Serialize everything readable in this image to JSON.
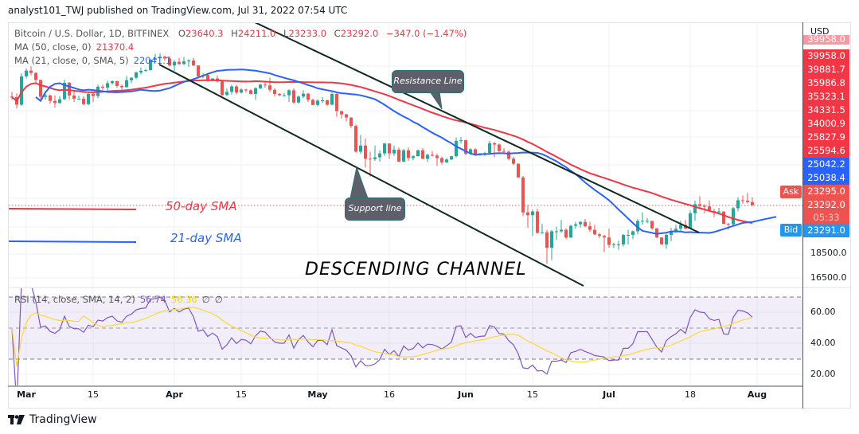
{
  "header": {
    "publisher_line": "analyst101_TWJ published on TradingView.com, Jul 31, 2022 07:54 UTC"
  },
  "legend": {
    "symbol": "Bitcoin / U.S. Dollar, 1D, BITFINEX",
    "o_label": "O",
    "o": "23640.3",
    "h_label": "H",
    "h": "24211.0",
    "l_label": "L",
    "l": "23233.0",
    "c_label": "C",
    "c": "23292.0",
    "change": "−347.0 (−1.47%)",
    "ma50_label": "MA (50, close, 0)",
    "ma50_value": "21370.4",
    "ma21_label": "MA (21, close, 0, SMA, 5)",
    "ma21_value": "22041.1",
    "rsi_label": "RSI (14, close, SMA, 14, 2)",
    "rsi_value": "56.74",
    "rsi_sma_value": "56.36",
    "rsi_extra1": "∅",
    "rsi_extra2": "∅"
  },
  "price_axis": {
    "currency": "USD",
    "stacked_labels": [
      {
        "text": "39958.0",
        "color": "#f23645"
      },
      {
        "text": "39958.0",
        "color": "#f23645"
      },
      {
        "text": "39881.7",
        "color": "#f23645"
      },
      {
        "text": "35986.8",
        "color": "#f23645"
      },
      {
        "text": "35323.1",
        "color": "#f23645"
      },
      {
        "text": "34331.5",
        "color": "#f23645"
      },
      {
        "text": "34000.9",
        "color": "#f23645"
      },
      {
        "text": "25827.9",
        "color": "#f23645"
      },
      {
        "text": "25594.6",
        "color": "#f23645"
      },
      {
        "text": "25042.2",
        "color": "#2962ff"
      },
      {
        "text": "25038.4",
        "color": "#2962ff"
      }
    ],
    "ask_label": "Ask",
    "ask_price": "23295.0",
    "last_price": "23292.0",
    "countdown": "05:33",
    "bid_label": "Bid",
    "bid_price": "23291.0",
    "tick_labels": [
      "18500.0",
      "16500.0"
    ]
  },
  "rsi_axis": {
    "tick_labels": [
      "60.00",
      "40.00",
      "20.00"
    ]
  },
  "time_axis": {
    "labels": [
      "Mar",
      "15",
      "Apr",
      "15",
      "May",
      "16",
      "Jun",
      "15",
      "Jul",
      "18",
      "Aug"
    ]
  },
  "annotations": {
    "resistance": "Resistance Line",
    "support": "Support line",
    "sma50": "50-day SMA",
    "sma21": "21-day SMA",
    "channel": "DESCENDING CHANNEL"
  },
  "footer": {
    "brand": "TradingView"
  },
  "colors": {
    "up": "#26a69a",
    "down": "#ef5350",
    "ma50": "#f23645",
    "ma21": "#2962ff",
    "rsi": "#7e57c2",
    "rsi_sma": "#fdd835",
    "ask": "#ef5350",
    "bid": "#2196f3"
  },
  "chart_data": {
    "type": "candlestick",
    "title": "Bitcoin / U.S. Dollar, 1D, BITFINEX",
    "y_scale": "log",
    "ylabel": "USD",
    "grid": true,
    "overlays": [
      {
        "name": "MA (50, close, 0)",
        "type": "sma",
        "period": 50,
        "offset": 0,
        "color": "#f23645"
      },
      {
        "name": "MA (21, close, 0, SMA, 5)",
        "type": "sma",
        "period": 21,
        "offset": 5,
        "color": "#2962ff"
      }
    ],
    "indicator": {
      "name": "RSI (14, close, SMA, 14, 2)",
      "period": 14,
      "sma": 14,
      "bands": [
        70,
        50,
        30
      ],
      "ylim": [
        10,
        80
      ]
    },
    "candles_columns": [
      "date",
      "open",
      "high",
      "low",
      "close"
    ],
    "candles": [
      [
        "2022-02-26",
        39200,
        40100,
        38600,
        39100
      ],
      [
        "2022-02-27",
        39100,
        39800,
        37000,
        37700
      ],
      [
        "2022-02-28",
        37700,
        43800,
        37500,
        43200
      ],
      [
        "2022-03-01",
        43200,
        44900,
        42800,
        44400
      ],
      [
        "2022-03-02",
        44400,
        45300,
        43400,
        43900
      ],
      [
        "2022-03-03",
        43900,
        44100,
        41900,
        42450
      ],
      [
        "2022-03-04",
        42450,
        42500,
        38700,
        39150
      ],
      [
        "2022-03-05",
        39150,
        39700,
        38600,
        39400
      ],
      [
        "2022-03-06",
        39400,
        39600,
        37900,
        38400
      ],
      [
        "2022-03-07",
        38400,
        39400,
        37200,
        38000
      ],
      [
        "2022-03-08",
        38000,
        39300,
        37900,
        38700
      ],
      [
        "2022-03-09",
        38700,
        42500,
        38600,
        41900
      ],
      [
        "2022-03-10",
        41900,
        42000,
        38600,
        39400
      ],
      [
        "2022-03-11",
        39400,
        40200,
        38200,
        38800
      ],
      [
        "2022-03-12",
        38800,
        39400,
        38700,
        38800
      ],
      [
        "2022-03-13",
        38800,
        39300,
        37600,
        37800
      ],
      [
        "2022-03-14",
        37800,
        39900,
        37600,
        39700
      ],
      [
        "2022-03-15",
        39700,
        39900,
        38200,
        39300
      ],
      [
        "2022-03-16",
        39300,
        41500,
        38900,
        41100
      ],
      [
        "2022-03-17",
        41100,
        41500,
        40500,
        40900
      ],
      [
        "2022-03-18",
        40900,
        42300,
        40200,
        41800
      ],
      [
        "2022-03-19",
        41800,
        42400,
        41500,
        42200
      ],
      [
        "2022-03-20",
        42200,
        42300,
        40900,
        41250
      ],
      [
        "2022-03-21",
        41250,
        41500,
        40500,
        41000
      ],
      [
        "2022-03-22",
        41000,
        43300,
        40900,
        42400
      ],
      [
        "2022-03-23",
        42400,
        43000,
        41800,
        42900
      ],
      [
        "2022-03-24",
        42900,
        44200,
        42600,
        44000
      ],
      [
        "2022-03-25",
        44000,
        45100,
        43600,
        44350
      ],
      [
        "2022-03-26",
        44350,
        44800,
        44100,
        44500
      ],
      [
        "2022-03-27",
        44500,
        46900,
        44400,
        46800
      ],
      [
        "2022-03-28",
        46800,
        48100,
        46700,
        47100
      ],
      [
        "2022-03-29",
        47100,
        48200,
        46900,
        47450
      ],
      [
        "2022-03-30",
        47450,
        47700,
        46500,
        47050
      ],
      [
        "2022-03-31",
        47050,
        47600,
        45300,
        45500
      ],
      [
        "2022-04-01",
        45500,
        46700,
        44300,
        46300
      ],
      [
        "2022-04-02",
        46300,
        47200,
        45700,
        45800
      ],
      [
        "2022-04-03",
        45800,
        47400,
        45600,
        46400
      ],
      [
        "2022-04-04",
        46400,
        46900,
        45200,
        46600
      ],
      [
        "2022-04-05",
        46600,
        47200,
        45400,
        45500
      ],
      [
        "2022-04-06",
        45500,
        45500,
        43100,
        43200
      ],
      [
        "2022-04-07",
        43200,
        43900,
        42800,
        43450
      ],
      [
        "2022-04-08",
        43450,
        43900,
        42100,
        42250
      ],
      [
        "2022-04-09",
        42250,
        42800,
        42150,
        42750
      ],
      [
        "2022-04-10",
        42750,
        43400,
        41900,
        42150
      ],
      [
        "2022-04-11",
        42150,
        42400,
        39300,
        39500
      ],
      [
        "2022-04-12",
        39500,
        40700,
        39300,
        40100
      ],
      [
        "2022-04-13",
        40100,
        41500,
        39600,
        41150
      ],
      [
        "2022-04-14",
        41150,
        41500,
        39600,
        39950
      ],
      [
        "2022-04-15",
        39950,
        40800,
        39800,
        40550
      ],
      [
        "2022-04-16",
        40550,
        40700,
        40000,
        40400
      ],
      [
        "2022-04-17",
        40400,
        40600,
        39600,
        39700
      ],
      [
        "2022-04-18",
        39700,
        41000,
        38600,
        40800
      ],
      [
        "2022-04-19",
        40800,
        41700,
        40600,
        41500
      ],
      [
        "2022-04-20",
        41500,
        42200,
        40900,
        41350
      ],
      [
        "2022-04-21",
        41350,
        42900,
        40100,
        40500
      ],
      [
        "2022-04-22",
        40500,
        40800,
        39200,
        39700
      ],
      [
        "2022-04-23",
        39700,
        39900,
        39300,
        39450
      ],
      [
        "2022-04-24",
        39450,
        39900,
        39200,
        39450
      ],
      [
        "2022-04-25",
        39450,
        40600,
        38200,
        40400
      ],
      [
        "2022-04-26",
        40400,
        40800,
        37900,
        38100
      ],
      [
        "2022-04-27",
        38100,
        39400,
        37900,
        39200
      ],
      [
        "2022-04-28",
        39200,
        40400,
        38900,
        39750
      ],
      [
        "2022-04-29",
        39750,
        39900,
        38200,
        38600
      ],
      [
        "2022-04-30",
        38600,
        38800,
        37600,
        37650
      ],
      [
        "2022-05-01",
        37650,
        38700,
        37400,
        38450
      ],
      [
        "2022-05-02",
        38450,
        39100,
        38000,
        38500
      ],
      [
        "2022-05-03",
        38500,
        38600,
        37500,
        37700
      ],
      [
        "2022-05-04",
        37700,
        40000,
        37600,
        39700
      ],
      [
        "2022-05-05",
        39700,
        39800,
        35600,
        36550
      ],
      [
        "2022-05-06",
        36550,
        36600,
        35300,
        36000
      ],
      [
        "2022-05-07",
        36000,
        36100,
        34800,
        35450
      ],
      [
        "2022-05-08",
        35450,
        35500,
        33700,
        34050
      ],
      [
        "2022-05-09",
        34050,
        34300,
        30000,
        30100
      ],
      [
        "2022-05-10",
        30100,
        32600,
        29800,
        31000
      ],
      [
        "2022-05-11",
        31000,
        32100,
        27900,
        29100
      ],
      [
        "2022-05-12",
        29100,
        30100,
        26700,
        29050
      ],
      [
        "2022-05-13",
        29050,
        31000,
        28800,
        29300
      ],
      [
        "2022-05-14",
        29300,
        30300,
        28700,
        29850
      ],
      [
        "2022-05-15",
        29850,
        31400,
        29500,
        31300
      ],
      [
        "2022-05-16",
        31300,
        31300,
        29100,
        29850
      ],
      [
        "2022-05-17",
        29850,
        31000,
        29500,
        30400
      ],
      [
        "2022-05-18",
        30400,
        30700,
        28700,
        28700
      ],
      [
        "2022-05-19",
        28700,
        30500,
        28700,
        30300
      ],
      [
        "2022-05-20",
        30300,
        30700,
        28800,
        29200
      ],
      [
        "2022-05-21",
        29200,
        29600,
        28900,
        29450
      ],
      [
        "2022-05-22",
        29450,
        30400,
        29400,
        30300
      ],
      [
        "2022-05-23",
        30300,
        30600,
        29000,
        29100
      ],
      [
        "2022-05-24",
        29100,
        29800,
        28700,
        29650
      ],
      [
        "2022-05-25",
        29650,
        30200,
        29400,
        29550
      ],
      [
        "2022-05-26",
        29550,
        29800,
        28100,
        29200
      ],
      [
        "2022-05-27",
        29200,
        29400,
        28300,
        28600
      ],
      [
        "2022-05-28",
        28600,
        29200,
        28500,
        29000
      ],
      [
        "2022-05-29",
        29000,
        29500,
        28900,
        29450
      ],
      [
        "2022-05-30",
        29450,
        32200,
        29300,
        31700
      ],
      [
        "2022-05-31",
        31700,
        32300,
        31300,
        31800
      ],
      [
        "2022-06-01",
        31800,
        31900,
        29600,
        29800
      ],
      [
        "2022-06-02",
        29800,
        30600,
        29600,
        30450
      ],
      [
        "2022-06-03",
        30450,
        30600,
        29500,
        29700
      ],
      [
        "2022-06-04",
        29700,
        29900,
        29500,
        29850
      ],
      [
        "2022-06-05",
        29850,
        30100,
        29500,
        29900
      ],
      [
        "2022-06-06",
        29900,
        31700,
        29800,
        31350
      ],
      [
        "2022-06-07",
        31350,
        31500,
        29300,
        31150
      ],
      [
        "2022-06-08",
        31150,
        31300,
        29900,
        30200
      ],
      [
        "2022-06-09",
        30200,
        30600,
        30000,
        30100
      ],
      [
        "2022-06-10",
        30100,
        30300,
        28900,
        29100
      ],
      [
        "2022-06-11",
        29100,
        29400,
        28200,
        28400
      ],
      [
        "2022-06-12",
        28400,
        28500,
        26600,
        26600
      ],
      [
        "2022-06-13",
        26600,
        26800,
        22100,
        22500
      ],
      [
        "2022-06-14",
        22500,
        23300,
        20900,
        22200
      ],
      [
        "2022-06-15",
        22200,
        22800,
        20100,
        22600
      ],
      [
        "2022-06-16",
        22600,
        22900,
        20300,
        20400
      ],
      [
        "2022-06-17",
        20400,
        21300,
        20300,
        20450
      ],
      [
        "2022-06-18",
        20450,
        20700,
        17600,
        19000
      ],
      [
        "2022-06-19",
        19000,
        20700,
        17900,
        20550
      ],
      [
        "2022-06-20",
        20550,
        21000,
        19700,
        20550
      ],
      [
        "2022-06-21",
        20550,
        21700,
        20400,
        20700
      ],
      [
        "2022-06-22",
        20700,
        20850,
        19800,
        19950
      ],
      [
        "2022-06-23",
        19950,
        21200,
        19900,
        21100
      ],
      [
        "2022-06-24",
        21100,
        21500,
        20800,
        21250
      ],
      [
        "2022-06-25",
        21250,
        21600,
        20900,
        21500
      ],
      [
        "2022-06-26",
        21500,
        21800,
        20950,
        21050
      ],
      [
        "2022-06-27",
        21050,
        21500,
        20500,
        20700
      ],
      [
        "2022-06-28",
        20700,
        21200,
        20200,
        20250
      ],
      [
        "2022-06-29",
        20250,
        20400,
        19900,
        20100
      ],
      [
        "2022-06-30",
        20100,
        20200,
        18600,
        19950
      ],
      [
        "2022-07-01",
        19950,
        20800,
        19000,
        19250
      ],
      [
        "2022-07-02",
        19250,
        19450,
        18950,
        19300
      ],
      [
        "2022-07-03",
        19300,
        19650,
        18800,
        19300
      ],
      [
        "2022-07-04",
        19300,
        20300,
        19100,
        20200
      ],
      [
        "2022-07-05",
        20200,
        20700,
        19300,
        20200
      ],
      [
        "2022-07-06",
        20200,
        20650,
        19800,
        20550
      ],
      [
        "2022-07-07",
        20550,
        21800,
        20250,
        21600
      ],
      [
        "2022-07-08",
        21600,
        22500,
        21200,
        21600
      ],
      [
        "2022-07-09",
        21600,
        21900,
        21350,
        21600
      ],
      [
        "2022-07-10",
        21600,
        21600,
        20700,
        20850
      ],
      [
        "2022-07-11",
        20850,
        20850,
        19900,
        19950
      ],
      [
        "2022-07-12",
        19950,
        20000,
        19300,
        19300
      ],
      [
        "2022-07-13",
        19300,
        20300,
        18900,
        20200
      ],
      [
        "2022-07-14",
        20200,
        20900,
        19600,
        20550
      ],
      [
        "2022-07-15",
        20550,
        21200,
        20400,
        20800
      ],
      [
        "2022-07-16",
        20800,
        21600,
        20500,
        21200
      ],
      [
        "2022-07-17",
        21200,
        21700,
        20800,
        20800
      ],
      [
        "2022-07-18",
        20800,
        22700,
        20800,
        22400
      ],
      [
        "2022-07-19",
        22400,
        23800,
        21600,
        23400
      ],
      [
        "2022-07-20",
        23400,
        24300,
        22900,
        23200
      ],
      [
        "2022-07-21",
        23200,
        23400,
        22400,
        23150
      ],
      [
        "2022-07-22",
        23150,
        23800,
        22600,
        22650
      ],
      [
        "2022-07-23",
        22650,
        22900,
        22000,
        22500
      ],
      [
        "2022-07-24",
        22500,
        23000,
        22300,
        22600
      ],
      [
        "2022-07-25",
        22600,
        22600,
        21300,
        21300
      ],
      [
        "2022-07-26",
        21300,
        21400,
        20700,
        21250
      ],
      [
        "2022-07-27",
        21250,
        23100,
        21050,
        22950
      ],
      [
        "2022-07-28",
        22950,
        24200,
        22600,
        23850
      ],
      [
        "2022-07-29",
        23850,
        24400,
        23450,
        23800
      ],
      [
        "2022-07-30",
        23800,
        24700,
        23500,
        23640
      ],
      [
        "2022-07-31",
        23640,
        24211,
        23233,
        23292
      ]
    ]
  }
}
